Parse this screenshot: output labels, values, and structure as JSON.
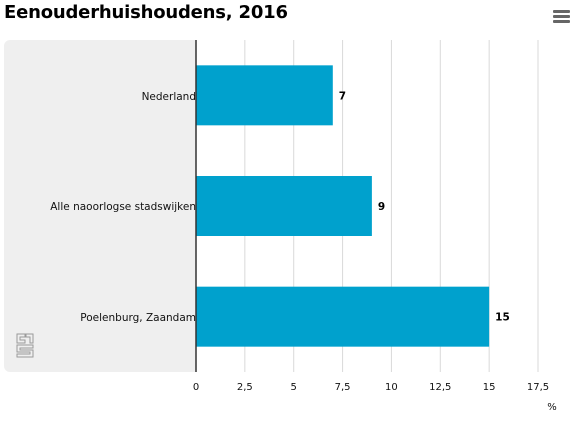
{
  "title": "Eenouderhuishoudens, 2016",
  "chart_data": {
    "type": "bar",
    "orientation": "horizontal",
    "categories": [
      "Nederland",
      "Alle naoorlogse stadswijken",
      "Poelenburg, Zaandam"
    ],
    "series": [
      {
        "values": [
          7,
          9,
          15
        ]
      }
    ],
    "data_labels": [
      "7",
      "9",
      "15"
    ],
    "title": "Eenouderhuishoudens, 2016",
    "xlabel": "%",
    "ylabel": "",
    "xlim": [
      0,
      17.5
    ],
    "ticks": [
      "0",
      "2,5",
      "5",
      "7,5",
      "10",
      "12,5",
      "15",
      "17,5"
    ],
    "tick_values": [
      0,
      2.5,
      5,
      7.5,
      10,
      12.5,
      15,
      17.5
    ],
    "grid": true,
    "legend": "none",
    "bar_color": "#00a1cd"
  },
  "icons": {
    "menu": "hamburger-menu-icon",
    "logo": "cbs-logo-icon"
  }
}
